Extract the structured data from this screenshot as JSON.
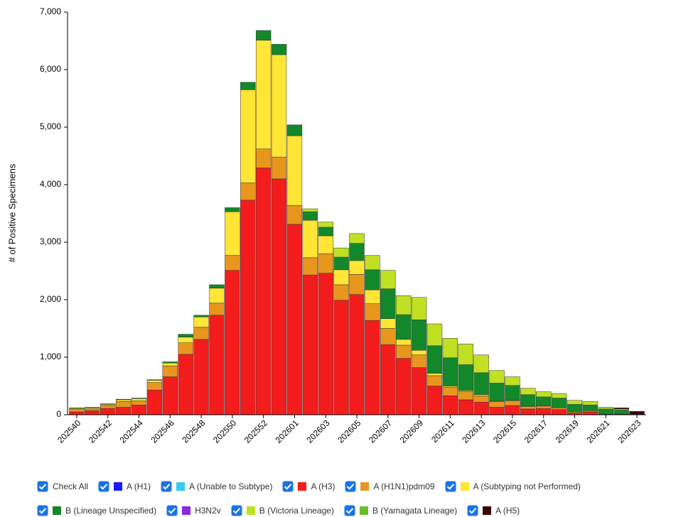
{
  "chart_data": {
    "type": "stacked_bar",
    "y_label": "# of Positive Specimens",
    "check_all_label": "Check All",
    "categories": [
      "202540",
      null,
      "202542",
      null,
      "202544",
      null,
      "202546",
      null,
      "202548",
      null,
      "202550",
      null,
      "202552",
      null,
      "202601",
      null,
      "202603",
      null,
      "202605",
      null,
      "202607",
      null,
      "202609",
      null,
      "202611",
      null,
      "202613",
      null,
      "202615",
      null,
      "202617",
      null,
      "202619",
      null,
      "202621",
      null,
      "202623"
    ],
    "series": [
      {
        "name": "A (H1)",
        "color": "#1a1aff",
        "values": [
          0,
          0,
          0,
          0,
          0,
          0,
          0,
          0,
          0,
          0,
          0,
          0,
          0,
          0,
          0,
          0,
          0,
          0,
          0,
          0,
          0,
          0,
          0,
          0,
          0,
          0,
          0,
          0,
          0,
          0,
          0,
          0,
          0,
          0,
          0,
          0,
          0
        ]
      },
      {
        "name": "A (Unable to Subtype)",
        "color": "#33ccf5",
        "values": [
          0,
          0,
          0,
          0,
          0,
          0,
          0,
          0,
          0,
          0,
          0,
          0,
          0,
          0,
          0,
          0,
          0,
          0,
          0,
          0,
          0,
          0,
          0,
          0,
          0,
          0,
          0,
          0,
          0,
          0,
          0,
          0,
          0,
          0,
          0,
          0,
          0
        ]
      },
      {
        "name": "A (H3)",
        "color": "#f21c1c",
        "values": [
          50,
          70,
          110,
          130,
          170,
          430,
          660,
          1050,
          1310,
          1730,
          2510,
          3730,
          4290,
          4100,
          3310,
          2430,
          2460,
          1990,
          2090,
          1640,
          1220,
          980,
          820,
          500,
          330,
          260,
          220,
          130,
          160,
          100,
          110,
          90,
          30,
          50,
          10,
          10,
          0
        ]
      },
      {
        "name": "A (H1N1)pdm09",
        "color": "#e8961e",
        "values": [
          40,
          30,
          50,
          100,
          70,
          130,
          190,
          200,
          210,
          210,
          260,
          300,
          330,
          380,
          330,
          300,
          340,
          270,
          350,
          290,
          280,
          230,
          220,
          180,
          150,
          140,
          110,
          100,
          80,
          40,
          40,
          30,
          20,
          20,
          10,
          0,
          0
        ]
      },
      {
        "name": "A (Subtyping not Performed)",
        "color": "#ffe535",
        "values": [
          20,
          20,
          20,
          30,
          40,
          40,
          50,
          100,
          180,
          260,
          760,
          1620,
          1890,
          1780,
          1210,
          650,
          310,
          260,
          240,
          240,
          170,
          100,
          80,
          40,
          20,
          20,
          20,
          10,
          10,
          10,
          10,
          10,
          0,
          0,
          0,
          0,
          0
        ]
      },
      {
        "name": "B (Lineage Unspecified)",
        "color": "#13882b",
        "values": [
          10,
          10,
          10,
          10,
          10,
          10,
          20,
          50,
          30,
          60,
          70,
          130,
          170,
          180,
          190,
          150,
          150,
          220,
          300,
          350,
          520,
          430,
          530,
          480,
          490,
          450,
          380,
          310,
          260,
          200,
          150,
          160,
          130,
          100,
          80,
          70,
          10
        ]
      },
      {
        "name": "H3N2v",
        "color": "#8a2be2",
        "values": [
          0,
          0,
          0,
          0,
          0,
          0,
          0,
          0,
          0,
          0,
          0,
          0,
          0,
          0,
          0,
          0,
          0,
          0,
          0,
          0,
          0,
          0,
          0,
          0,
          0,
          0,
          0,
          0,
          0,
          0,
          0,
          0,
          0,
          0,
          0,
          0,
          0
        ]
      },
      {
        "name": "B (Victoria Lineage)",
        "color": "#bfe023",
        "values": [
          0,
          0,
          0,
          0,
          0,
          0,
          0,
          0,
          0,
          0,
          0,
          0,
          0,
          0,
          0,
          50,
          90,
          160,
          170,
          250,
          320,
          330,
          390,
          380,
          340,
          360,
          310,
          220,
          150,
          110,
          90,
          80,
          70,
          60,
          30,
          20,
          0
        ]
      },
      {
        "name": "B (Yamagata Lineage)",
        "color": "#6cbf2a",
        "values": [
          0,
          0,
          0,
          0,
          0,
          0,
          0,
          0,
          0,
          0,
          0,
          0,
          0,
          0,
          0,
          0,
          0,
          0,
          0,
          0,
          0,
          0,
          0,
          0,
          0,
          0,
          0,
          0,
          0,
          0,
          0,
          0,
          0,
          0,
          0,
          0,
          0
        ]
      },
      {
        "name": "A (H5)",
        "color": "#3d0505",
        "values": [
          0,
          0,
          0,
          0,
          0,
          0,
          0,
          0,
          0,
          0,
          0,
          0,
          0,
          0,
          0,
          0,
          0,
          0,
          0,
          0,
          0,
          0,
          0,
          0,
          0,
          0,
          0,
          0,
          0,
          0,
          0,
          0,
          0,
          0,
          0,
          20,
          50
        ]
      }
    ],
    "ylim": [
      0,
      7000
    ],
    "yticks": [
      0,
      {
        "value": 1000,
        "label": "1,000"
      },
      {
        "value": 2000,
        "label": "2,000"
      },
      {
        "value": 3000,
        "label": "3,000"
      },
      {
        "value": 4000,
        "label": "4,000"
      },
      {
        "value": 5000,
        "label": "5,000"
      },
      {
        "value": 6000,
        "label": "6,000"
      },
      {
        "value": 7000,
        "label": "7,000"
      }
    ]
  }
}
